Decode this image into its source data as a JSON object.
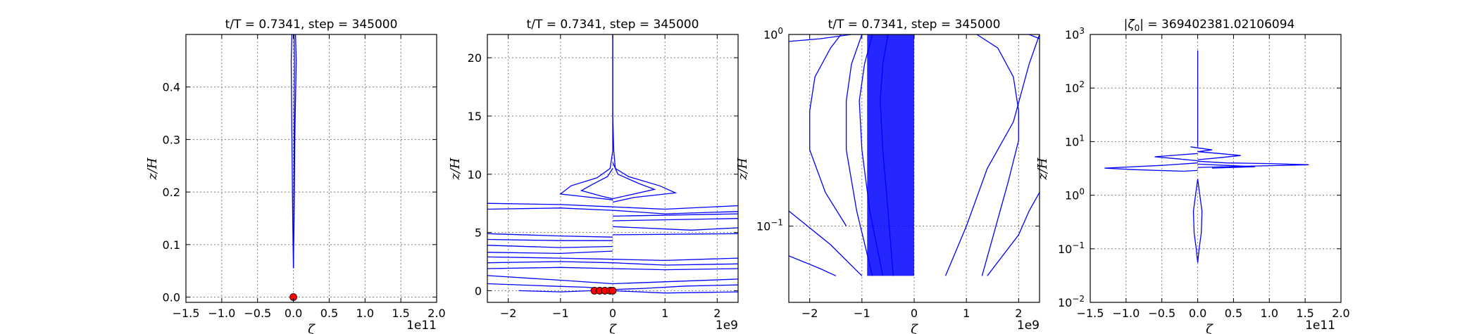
{
  "figure": {
    "background": "#ffffff",
    "line_color": "#0000ff",
    "marker_color": "#ff0000"
  },
  "chart_data": [
    {
      "type": "line",
      "title": "t/T = 0.7341, step = 345000",
      "xlabel": "ζ",
      "ylabel": "z/H",
      "x_offset_label": "1e11",
      "xlim": [
        -1.5,
        2.0
      ],
      "ylim": [
        -0.01,
        0.5
      ],
      "y_scale": "linear",
      "grid": true,
      "x_ticks": [
        "−1.5",
        "−1.0",
        "−0.5",
        "0.0",
        "0.5",
        "1.0",
        "1.5",
        "2.0"
      ],
      "x_tick_values": [
        -1.5,
        -1.0,
        -0.5,
        0.0,
        0.5,
        1.0,
        1.5,
        2.0
      ],
      "y_ticks": [
        "0.0",
        "0.1",
        "0.2",
        "0.3",
        "0.4"
      ],
      "y_tick_values": [
        0.0,
        0.1,
        0.2,
        0.3,
        0.4
      ],
      "profiles": [
        {
          "x": [
            0.0,
            0.01,
            0.02,
            0.04,
            0.03,
            0.0
          ],
          "y": [
            0.055,
            0.15,
            0.3,
            0.45,
            0.5,
            0.5
          ]
        },
        {
          "x": [
            0.0,
            -0.01,
            -0.02,
            -0.03,
            -0.02,
            0.0
          ],
          "y": [
            0.055,
            0.15,
            0.3,
            0.45,
            0.5,
            0.5
          ]
        },
        {
          "x": [
            0.0,
            0.005,
            0.01,
            0.015,
            0.01
          ],
          "y": [
            0.055,
            0.15,
            0.3,
            0.45,
            0.5
          ]
        }
      ],
      "markers": {
        "x": [
          0.0
        ],
        "y": [
          0.0
        ]
      }
    },
    {
      "type": "line",
      "title": "t/T = 0.7341, step = 345000",
      "xlabel": "ζ",
      "ylabel": "z/H",
      "x_offset_label": "1e9",
      "xlim": [
        -2.4,
        2.4
      ],
      "ylim": [
        -1.0,
        22.0
      ],
      "y_scale": "linear",
      "grid": true,
      "x_ticks": [
        "−2",
        "−1",
        "0",
        "1",
        "2"
      ],
      "x_tick_values": [
        -2,
        -1,
        0,
        1,
        2
      ],
      "y_ticks": [
        "0",
        "5",
        "10",
        "15",
        "20"
      ],
      "y_tick_values": [
        0,
        5,
        10,
        15,
        20
      ],
      "profiles": [
        {
          "x": [
            0.0,
            0.0,
            0.02,
            0.05,
            0.3,
            0.9,
            1.2,
            0.4,
            0.0
          ],
          "y": [
            22.0,
            15.0,
            12.0,
            10.5,
            9.8,
            9.0,
            8.4,
            8.0,
            7.6
          ]
        },
        {
          "x": [
            0.0,
            0.0,
            -0.05,
            -0.3,
            -0.8,
            -1.0,
            -0.4,
            0.0
          ],
          "y": [
            22.0,
            12.0,
            10.5,
            9.7,
            9.0,
            8.3,
            8.0,
            7.8
          ]
        },
        {
          "x": [
            0.0,
            0.1,
            0.5,
            0.8,
            0.3,
            0.0
          ],
          "y": [
            11.0,
            10.0,
            9.2,
            8.7,
            8.2,
            7.9
          ]
        },
        {
          "x": [
            0.0,
            -0.1,
            -0.4,
            -0.6,
            -0.2,
            0.0
          ],
          "y": [
            10.5,
            9.8,
            9.1,
            8.6,
            8.1,
            7.9
          ]
        },
        {
          "x": [
            -2.4,
            -1.0,
            0.0,
            1.0,
            2.4
          ],
          "y": [
            7.5,
            7.4,
            7.2,
            7.0,
            7.3
          ]
        },
        {
          "x": [
            -2.4,
            -1.0,
            0.0,
            1.0,
            2.4
          ],
          "y": [
            7.0,
            7.1,
            6.9,
            6.6,
            6.8
          ]
        },
        {
          "x": [
            0.0,
            2.4
          ],
          "y": [
            6.4,
            6.6
          ]
        },
        {
          "x": [
            0.0,
            2.4
          ],
          "y": [
            6.0,
            6.2
          ]
        },
        {
          "x": [
            0.0,
            1.5,
            2.4
          ],
          "y": [
            5.5,
            5.2,
            5.4
          ]
        },
        {
          "x": [
            0.0,
            2.4
          ],
          "y": [
            4.8,
            4.9
          ]
        },
        {
          "x": [
            -2.4,
            -1.0,
            0.0
          ],
          "y": [
            4.9,
            4.7,
            4.6
          ]
        },
        {
          "x": [
            -2.4,
            -1.0,
            0.0
          ],
          "y": [
            4.4,
            4.3,
            4.3
          ]
        },
        {
          "x": [
            -2.4,
            -1.0,
            0.0
          ],
          "y": [
            3.9,
            3.7,
            3.8
          ]
        },
        {
          "x": [
            -2.4,
            -1.0,
            0.0
          ],
          "y": [
            3.3,
            3.2,
            3.4
          ]
        },
        {
          "x": [
            -2.4,
            -1.0,
            0.0,
            1.0,
            2.4
          ],
          "y": [
            2.9,
            2.8,
            2.7,
            2.6,
            2.8
          ]
        },
        {
          "x": [
            -2.4,
            -1.0,
            0.0,
            1.0,
            2.4
          ],
          "y": [
            2.4,
            2.5,
            2.4,
            2.2,
            2.3
          ]
        },
        {
          "x": [
            -2.4,
            -1.0,
            0.0,
            1.0,
            2.4
          ],
          "y": [
            1.9,
            2.0,
            1.9,
            1.8,
            1.9
          ]
        },
        {
          "x": [
            -2.4,
            -1.2,
            -0.5,
            0.0,
            0.6,
            1.4,
            2.4
          ],
          "y": [
            0.6,
            0.4,
            0.3,
            0.1,
            0.2,
            0.4,
            0.5
          ]
        },
        {
          "x": [
            -2.4,
            -1.0,
            0.0,
            1.2,
            2.4
          ],
          "y": [
            1.3,
            0.9,
            0.6,
            0.8,
            1.0
          ]
        },
        {
          "x": [
            -1.8,
            -1.0,
            -0.4,
            0.0
          ],
          "y": [
            0.0,
            -0.1,
            0.0,
            0.2
          ]
        },
        {
          "x": [
            0.0,
            1.0,
            2.4
          ],
          "y": [
            0.0,
            -0.2,
            -0.1
          ]
        }
      ],
      "markers": {
        "x": [
          -0.35,
          -0.25,
          -0.15,
          -0.05,
          0.0
        ],
        "y": [
          0.0,
          0.0,
          0.0,
          0.0,
          0.0
        ]
      }
    },
    {
      "type": "line",
      "title": "t/T = 0.7341, step = 345000",
      "xlabel": "ζ",
      "ylabel": "z/H",
      "x_offset_label": "1e9",
      "xlim": [
        -2.4,
        2.4
      ],
      "ylim": [
        0.04,
        1.0
      ],
      "y_scale": "log",
      "grid": true,
      "x_ticks": [
        "−2",
        "−1",
        "0",
        "1",
        "2"
      ],
      "x_tick_values": [
        -2,
        -1,
        0,
        1,
        2
      ],
      "y_ticks": [
        "10^-1",
        "10^0"
      ],
      "y_tick_values": [
        0.1,
        1.0
      ],
      "profiles": [
        {
          "x": [
            -1.4,
            -1.6,
            -1.9,
            -2.0,
            -2.0,
            -1.7,
            -1.3
          ],
          "y": [
            1.0,
            0.85,
            0.6,
            0.4,
            0.25,
            0.15,
            0.1
          ]
        },
        {
          "x": [
            -1.0,
            -1.2,
            -1.3,
            -1.3,
            -1.1,
            -0.8
          ],
          "y": [
            1.0,
            0.7,
            0.45,
            0.25,
            0.12,
            0.055
          ]
        },
        {
          "x": [
            -0.8,
            -0.95,
            -1.05,
            -1.0,
            -0.85,
            -0.6
          ],
          "y": [
            1.0,
            0.7,
            0.45,
            0.25,
            0.12,
            0.055
          ]
        },
        {
          "x": [
            -0.5,
            -0.6,
            -0.65,
            -0.6,
            -0.5,
            -0.4
          ],
          "y": [
            1.0,
            0.7,
            0.45,
            0.25,
            0.12,
            0.055
          ]
        },
        {
          "x": [
            -2.4,
            -1.8,
            -1.2,
            -0.9
          ],
          "y": [
            0.92,
            0.95,
            1.0,
            1.0
          ]
        },
        {
          "x": [
            -2.4,
            -1.6,
            -1.0
          ],
          "y": [
            0.12,
            0.08,
            0.055
          ]
        },
        {
          "x": [
            -2.4,
            -1.8,
            -1.5
          ],
          "y": [
            0.07,
            0.06,
            0.055
          ]
        },
        {
          "x": [
            1.2,
            1.6,
            1.9,
            2.0,
            2.0,
            1.8,
            1.3
          ],
          "y": [
            1.0,
            0.85,
            0.6,
            0.4,
            0.28,
            0.17,
            0.055
          ]
        },
        {
          "x": [
            0.6,
            1.0,
            1.4,
            1.9,
            2.2,
            2.4
          ],
          "y": [
            0.055,
            0.1,
            0.2,
            0.35,
            0.7,
            1.0
          ]
        },
        {
          "x": [
            2.4,
            2.2,
            2.0,
            1.4
          ],
          "y": [
            0.15,
            0.12,
            0.09,
            0.055
          ]
        },
        {
          "x": [
            2.4,
            2.2,
            2.0
          ],
          "y": [
            0.95,
            1.0,
            1.0
          ]
        }
      ],
      "fill": {
        "x0": -0.9,
        "x1": 0.0,
        "y_top": 1.0,
        "y_bottom": 0.055
      },
      "markers": {
        "x": [],
        "y": []
      }
    },
    {
      "type": "line",
      "title": "|ζ0| = 369402381.02106094",
      "xlabel": "ζ",
      "ylabel": "z/H",
      "x_offset_label": "1e11",
      "xlim": [
        -1.5,
        2.0
      ],
      "ylim": [
        0.01,
        1000
      ],
      "y_scale": "log",
      "grid": true,
      "x_ticks": [
        "−1.5",
        "−1.0",
        "−0.5",
        "0.0",
        "0.5",
        "1.0",
        "1.5",
        "2.0"
      ],
      "x_tick_values": [
        -1.5,
        -1.0,
        -0.5,
        0.0,
        0.5,
        1.0,
        1.5,
        2.0
      ],
      "y_ticks": [
        "10^-2",
        "10^-1",
        "10^0",
        "10^1",
        "10^2",
        "10^3"
      ],
      "y_tick_values": [
        0.01,
        0.1,
        1,
        10,
        100,
        1000
      ],
      "profiles": [
        {
          "x": [
            0.0,
            0.0,
            0.0
          ],
          "y": [
            500,
            50,
            8
          ]
        },
        {
          "x": [
            0.0,
            0.03,
            0.06,
            0.05,
            0.02,
            0.0
          ],
          "y": [
            2.0,
            1.0,
            0.5,
            0.2,
            0.1,
            0.055
          ]
        },
        {
          "x": [
            0.0,
            -0.03,
            -0.06,
            -0.05,
            -0.02,
            0.0
          ],
          "y": [
            2.0,
            1.0,
            0.5,
            0.2,
            0.1,
            0.055
          ]
        },
        {
          "x": [
            0.0,
            0.4,
            1.0,
            1.55,
            0.8,
            0.0
          ],
          "y": [
            4.3,
            4.0,
            3.9,
            3.7,
            3.5,
            3.3
          ]
        },
        {
          "x": [
            0.0,
            -0.5,
            -1.3,
            -0.9,
            -0.2,
            0.0
          ],
          "y": [
            4.0,
            3.6,
            3.2,
            3.0,
            2.8,
            2.9
          ]
        },
        {
          "x": [
            0.0,
            0.3,
            0.6,
            0.3,
            0.0
          ],
          "y": [
            6.5,
            6.0,
            5.5,
            5.0,
            4.6
          ]
        },
        {
          "x": [
            0.0,
            -0.3,
            -0.6,
            -0.3,
            0.0
          ],
          "y": [
            6.0,
            5.6,
            5.2,
            4.8,
            4.4
          ]
        },
        {
          "x": [
            -0.1,
            0.2,
            0.0
          ],
          "y": [
            8.0,
            7.0,
            6.5
          ]
        },
        {
          "x": [
            0.0,
            0.4,
            0.8,
            0.2
          ],
          "y": [
            3.8,
            3.6,
            3.4,
            3.2
          ]
        }
      ],
      "markers": {
        "x": [],
        "y": []
      }
    }
  ]
}
